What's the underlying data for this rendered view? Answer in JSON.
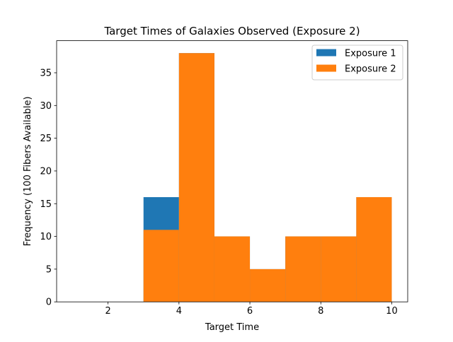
{
  "chart_data": {
    "type": "bar",
    "title": "Target Times of Galaxies Observed (Exposure 2)",
    "xlabel": "Target Time",
    "ylabel": "Frequency (100 Fibers Available)",
    "xlim": [
      0.55,
      10.45
    ],
    "ylim": [
      0,
      39.9
    ],
    "xticks": [
      2,
      4,
      6,
      8,
      10
    ],
    "yticks": [
      0,
      5,
      10,
      15,
      20,
      25,
      30,
      35
    ],
    "legend_position": "top-right",
    "bin_width": 1,
    "series": [
      {
        "name": "Exposure 1",
        "color": "#1f77b4",
        "bins": [
          {
            "x0": 3,
            "x1": 4,
            "value": 16
          },
          {
            "x0": 4,
            "x1": 5,
            "value": 38
          },
          {
            "x0": 5,
            "x1": 6,
            "value": 10
          },
          {
            "x0": 6,
            "x1": 7,
            "value": 5
          },
          {
            "x0": 7,
            "x1": 8,
            "value": 10
          },
          {
            "x0": 8,
            "x1": 9,
            "value": 10
          },
          {
            "x0": 9,
            "x1": 10,
            "value": 16
          }
        ]
      },
      {
        "name": "Exposure 2",
        "color": "#ff7f0e",
        "bins": [
          {
            "x0": 3,
            "x1": 4,
            "value": 11
          },
          {
            "x0": 4,
            "x1": 5,
            "value": 38
          },
          {
            "x0": 5,
            "x1": 6,
            "value": 10
          },
          {
            "x0": 6,
            "x1": 7,
            "value": 5
          },
          {
            "x0": 7,
            "x1": 8,
            "value": 10
          },
          {
            "x0": 8,
            "x1": 9,
            "value": 10
          },
          {
            "x0": 9,
            "x1": 10,
            "value": 16
          }
        ]
      }
    ]
  }
}
